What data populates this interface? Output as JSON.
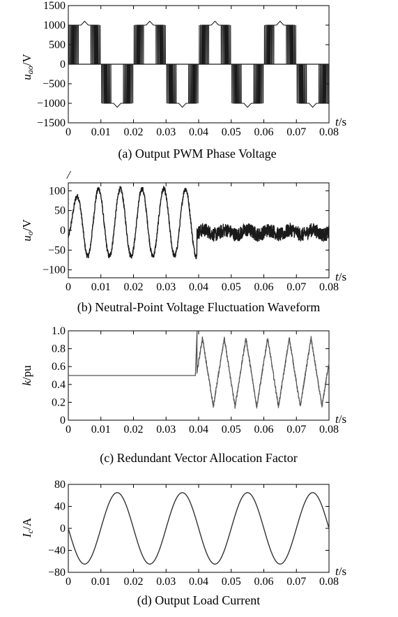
{
  "chart_data": [
    {
      "type": "line",
      "caption": "(a) Output PWM Phase Voltage",
      "ylabel": "u_ao/V",
      "ylabel_main": "u",
      "ylabel_sub": "ao",
      "ylabel_unit": "/V",
      "xlabel_main": "t",
      "xlabel_unit": "/s",
      "xlim": [
        0,
        0.08
      ],
      "ylim": [
        -1500,
        1500
      ],
      "xticks": [
        0,
        0.01,
        0.02,
        0.03,
        0.04,
        0.05,
        0.06,
        0.07,
        0.08
      ],
      "xtick_labels": [
        "0",
        "0.01",
        "0.02",
        "0.03",
        "0.04",
        "0.05",
        "0.06",
        "0.07",
        "0.08"
      ],
      "yticks": [
        1500,
        1000,
        500,
        0,
        -500,
        -1000,
        -1500
      ],
      "ytick_labels": [
        "1500",
        "1000",
        "500",
        "0",
        "−500",
        "−1000",
        "−1500"
      ],
      "series": [
        {
          "fundamental_hz": 50,
          "levels": [
            -1000,
            0,
            1000
          ],
          "peak": 1100,
          "color": "#1a1a1a"
        }
      ]
    },
    {
      "type": "line",
      "caption": "(b) Neutral-Point Voltage Fluctuation Waveform",
      "ylabel_main": "u",
      "ylabel_sub": "o",
      "ylabel_unit": "/V",
      "xlabel_main": "t",
      "xlabel_unit": "/s",
      "stray_label": "/",
      "xlim": [
        0,
        0.08
      ],
      "ylim": [
        -120,
        120
      ],
      "xticks": [
        0,
        0.01,
        0.02,
        0.03,
        0.04,
        0.05,
        0.06,
        0.07,
        0.08
      ],
      "xtick_labels": [
        "0",
        "0.01",
        "0.02",
        "0.03",
        "0.04",
        "0.05",
        "0.06",
        "0.07",
        "0.08"
      ],
      "yticks": [
        100,
        50,
        0,
        -50,
        -100
      ],
      "ytick_labels": [
        "100",
        "50",
        "0",
        "−50",
        "−100"
      ],
      "series": [
        {
          "segments": [
            {
              "t_start": 0,
              "t_end": 0.0395,
              "offset": 20,
              "amplitude": 85,
              "frequency_hz": 150
            },
            {
              "t_start": 0.0395,
              "t_end": 0.08,
              "offset": -5,
              "amplitude": 20
            }
          ],
          "color": "#1a1a1a"
        }
      ]
    },
    {
      "type": "line",
      "caption": "(c) Redundant Vector Allocation Factor",
      "ylabel_main": "k",
      "ylabel_unit": "/pu",
      "xlabel_main": "t",
      "xlabel_unit": "/s",
      "xlim": [
        0,
        0.08
      ],
      "ylim": [
        0,
        1.0
      ],
      "xticks": [
        0,
        0.01,
        0.02,
        0.03,
        0.04,
        0.05,
        0.06,
        0.07,
        0.08
      ],
      "xtick_labels": [
        "0",
        "0.01",
        "0.02",
        "0.03",
        "0.04",
        "0.05",
        "0.06",
        "0.07",
        "0.08"
      ],
      "yticks": [
        1.0,
        0.8,
        0.6,
        0.4,
        0.2,
        0
      ],
      "ytick_labels": [
        "1.0",
        "0.8",
        "0.6",
        "0.4",
        "0.2",
        "0"
      ],
      "series": [
        {
          "constant": {
            "t_start": 0,
            "t_end": 0.039,
            "value": 0.5
          },
          "spike": {
            "t": 0.0395,
            "value": 1.0
          },
          "oscillation": {
            "t_start": 0.0395,
            "t_end": 0.08,
            "min": 0.15,
            "max": 0.92,
            "frequency_hz": 150
          },
          "color": "#555555"
        }
      ]
    },
    {
      "type": "line",
      "caption": "(d) Output Load Current",
      "ylabel_main": "I",
      "ylabel_sub": "c",
      "ylabel_unit": "/A",
      "xlabel_main": "t",
      "xlabel_unit": "/s",
      "xlim": [
        0,
        0.08
      ],
      "ylim": [
        -80,
        80
      ],
      "xticks": [
        0,
        0.01,
        0.02,
        0.03,
        0.04,
        0.05,
        0.06,
        0.07,
        0.08
      ],
      "xtick_labels": [
        "0",
        "0.01",
        "0.02",
        "0.03",
        "0.04",
        "0.05",
        "0.06",
        "0.07",
        "0.08"
      ],
      "yticks": [
        80,
        40,
        0,
        -40,
        -80
      ],
      "ytick_labels": [
        "80",
        "40",
        "0",
        "−40",
        "−80"
      ],
      "series": [
        {
          "amplitude": 65,
          "frequency_hz": 50,
          "phase": "negative sine",
          "color": "#333333"
        }
      ]
    }
  ]
}
